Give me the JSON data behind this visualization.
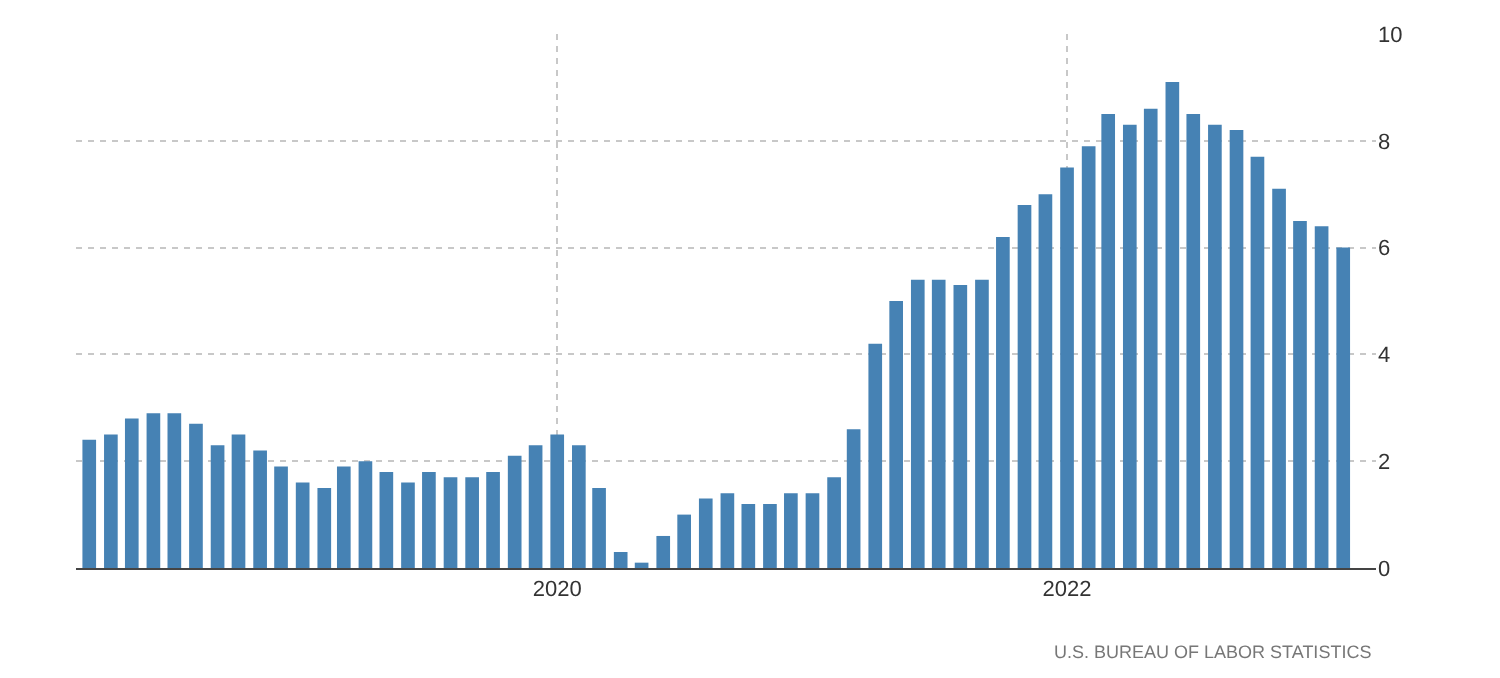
{
  "chart_data": {
    "type": "bar",
    "x": [
      "2018-03",
      "2018-04",
      "2018-05",
      "2018-06",
      "2018-07",
      "2018-08",
      "2018-09",
      "2018-10",
      "2018-11",
      "2018-12",
      "2019-01",
      "2019-02",
      "2019-03",
      "2019-04",
      "2019-05",
      "2019-06",
      "2019-07",
      "2019-08",
      "2019-09",
      "2019-10",
      "2019-11",
      "2019-12",
      "2020-01",
      "2020-02",
      "2020-03",
      "2020-04",
      "2020-05",
      "2020-06",
      "2020-07",
      "2020-08",
      "2020-09",
      "2020-10",
      "2020-11",
      "2020-12",
      "2021-01",
      "2021-02",
      "2021-03",
      "2021-04",
      "2021-05",
      "2021-06",
      "2021-07",
      "2021-08",
      "2021-09",
      "2021-10",
      "2021-11",
      "2021-12",
      "2022-01",
      "2022-02",
      "2022-03",
      "2022-04",
      "2022-05",
      "2022-06",
      "2022-07",
      "2022-08",
      "2022-09",
      "2022-10",
      "2022-11",
      "2022-12",
      "2023-01",
      "2023-02"
    ],
    "values": [
      2.4,
      2.5,
      2.8,
      2.9,
      2.9,
      2.7,
      2.3,
      2.5,
      2.2,
      1.9,
      1.6,
      1.5,
      1.9,
      2.0,
      1.8,
      1.6,
      1.8,
      1.7,
      1.7,
      1.8,
      2.1,
      2.3,
      2.5,
      2.3,
      1.5,
      0.3,
      0.1,
      0.6,
      1.0,
      1.3,
      1.4,
      1.2,
      1.2,
      1.4,
      1.4,
      1.7,
      2.6,
      4.2,
      5.0,
      5.4,
      5.4,
      5.3,
      5.4,
      6.2,
      6.8,
      7.0,
      7.5,
      7.9,
      8.5,
      8.3,
      8.6,
      9.1,
      8.5,
      8.3,
      8.2,
      7.7,
      7.1,
      6.5,
      6.4,
      6.0
    ],
    "color": "#4682b4",
    "xlim": [
      "2018-02-10",
      "2023-03-20"
    ],
    "xticks": [
      {
        "value": "2020-01",
        "label": "2020"
      },
      {
        "value": "2022-01",
        "label": "2022"
      }
    ],
    "ylim": [
      0,
      10
    ],
    "yticks": [
      0,
      2,
      4,
      6,
      8,
      10
    ],
    "grid": true,
    "annotations": [
      "U.S. BUREAU OF LABOR STATISTICS"
    ]
  }
}
